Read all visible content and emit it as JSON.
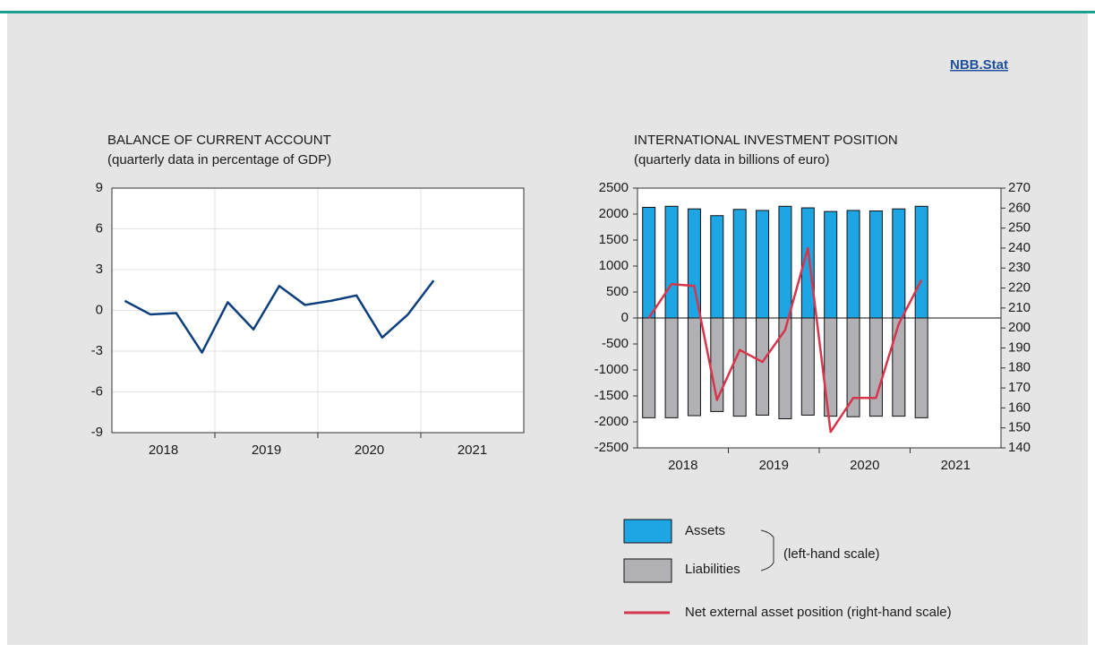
{
  "header": {
    "link": "NBB.Stat"
  },
  "chart_data": [
    {
      "type": "line",
      "title": "BALANCE OF CURRENT ACCOUNT",
      "subtitle": "(quarterly data in percentage of GDP)",
      "categories": [
        "2018",
        null,
        null,
        null,
        "2019",
        null,
        null,
        null,
        "2020",
        null,
        null,
        null,
        "2021"
      ],
      "values": [
        0.7,
        -0.3,
        -0.2,
        -3.1,
        0.6,
        -1.4,
        1.8,
        0.4,
        0.7,
        1.1,
        -2.0,
        -0.3,
        2.2
      ],
      "color": "#0d3f7e",
      "ylim": [
        -9,
        9
      ],
      "yticks": [
        9,
        6,
        3,
        0,
        -3,
        -6,
        -9
      ],
      "grid": true
    },
    {
      "type": "bar",
      "title": "INTERNATIONAL INVESTMENT POSITION",
      "subtitle": "(quarterly data in billions of euro)",
      "categories": [
        "2018",
        null,
        null,
        null,
        "2019",
        null,
        null,
        null,
        "2020",
        null,
        null,
        null,
        "2021"
      ],
      "series": [
        {
          "name": "Assets",
          "color": "#1ea5e3",
          "values": [
            2130,
            2150,
            2100,
            1970,
            2090,
            2070,
            2150,
            2120,
            2050,
            2070,
            2060,
            2100,
            2150
          ]
        },
        {
          "name": "Liabilities",
          "color": "#b1b1b5",
          "values": [
            -1920,
            -1920,
            -1880,
            -1800,
            -1890,
            -1870,
            -1940,
            -1870,
            -1890,
            -1900,
            -1890,
            -1890,
            -1920
          ]
        },
        {
          "name": "Net external asset position (right-hand scale)",
          "color": "#d6364b",
          "type": "line",
          "axis": "y2",
          "values": [
            205,
            222,
            221,
            164,
            189,
            183,
            199,
            240,
            148,
            165,
            165,
            202,
            224
          ]
        }
      ],
      "legend_note": "(left-hand scale)",
      "ylim": [
        -2500,
        2500
      ],
      "yticks": [
        2500,
        2000,
        1500,
        1000,
        500,
        0,
        -500,
        -1000,
        -1500,
        -2000,
        -2500
      ],
      "y2lim": [
        140,
        270
      ],
      "y2ticks": [
        270,
        260,
        250,
        240,
        230,
        220,
        210,
        200,
        190,
        180,
        170,
        160,
        150,
        140
      ],
      "grid": false
    }
  ]
}
